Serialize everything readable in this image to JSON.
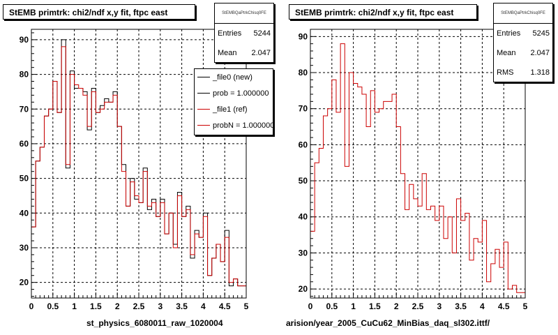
{
  "left": {
    "title": "StEMB primtrk: chi2/ndf x,y fit, ftpc east",
    "stats": {
      "name": "StEMBQaPtrkChisq0FE",
      "rows": [
        {
          "label": "Entries",
          "value": "5244"
        },
        {
          "label": "Mean",
          "value": "2.047"
        }
      ]
    },
    "legend": [
      {
        "label": "_file0 (new)",
        "color": "#000000"
      },
      {
        "label": "prob = 1.000000",
        "color": "#000000"
      },
      {
        "label": "_file1 (ref)",
        "color": "#cc0000"
      },
      {
        "label": "probN = 1.000000",
        "color": "#cc0000"
      }
    ],
    "footer": "st_physics_6080011_raw_1020004"
  },
  "right": {
    "title": "StEMB primtrk: chi2/ndf x,y fit, ftpc east",
    "stats": {
      "name": "StEMBQaPtrkChisq0FE",
      "rows": [
        {
          "label": "Entries",
          "value": "5245"
        },
        {
          "label": "Mean",
          "value": "2.047"
        },
        {
          "label": "RMS",
          "value": "1.318"
        }
      ]
    },
    "footer": "arision/year_2005_CuCu62_MinBias_daq_sl302.ittf/"
  },
  "chart_data": [
    {
      "type": "histogram",
      "title": "StEMB primtrk: chi2/ndf x,y fit, ftpc east",
      "xlim": [
        0,
        5
      ],
      "ylim": [
        15.5,
        93
      ],
      "xticks": [
        0,
        0.5,
        1,
        1.5,
        2,
        2.5,
        3,
        3.5,
        4,
        4.5,
        5
      ],
      "yticks": [
        20,
        30,
        40,
        50,
        60,
        70,
        80,
        90
      ],
      "xtick_labels": [
        "0",
        "0.5",
        "1",
        "1.5",
        "2",
        "2.5",
        "3",
        "3.5",
        "4",
        "4.5",
        "5"
      ],
      "ytick_labels": [
        "20",
        "30",
        "40",
        "50",
        "60",
        "70",
        "80",
        "90"
      ],
      "bin_width": 0.1,
      "bin_start": 0,
      "grid": true,
      "series": [
        {
          "name": "_file0 (new)",
          "color": "#000000",
          "values": [
            36,
            55,
            59,
            68,
            70,
            78,
            69,
            90,
            53,
            81,
            76,
            76,
            75,
            64,
            76,
            69,
            71,
            73,
            72,
            75,
            65,
            54,
            42,
            50,
            44,
            43,
            53,
            41,
            44,
            39,
            44,
            34,
            40,
            31,
            46,
            39,
            42,
            27,
            35,
            33,
            40,
            22,
            27,
            31,
            26,
            35,
            19,
            21,
            19,
            19
          ]
        },
        {
          "name": "_file1 (ref)",
          "color": "#cc0000",
          "values": [
            36,
            55,
            59,
            68,
            70,
            78,
            69,
            88,
            54,
            80,
            77,
            76,
            74,
            65,
            75,
            69,
            70,
            72,
            72,
            74,
            65,
            52,
            42,
            49,
            45,
            43,
            52,
            42,
            43,
            39,
            43,
            34,
            40,
            30,
            45,
            39,
            41,
            28,
            34,
            33,
            39,
            22,
            27,
            31,
            26,
            33,
            20,
            21,
            19,
            19
          ]
        }
      ]
    },
    {
      "type": "histogram",
      "title": "StEMB primtrk: chi2/ndf x,y fit, ftpc east",
      "xlim": [
        0,
        5
      ],
      "ylim": [
        17.5,
        92
      ],
      "xticks": [
        0,
        0.5,
        1,
        1.5,
        2,
        2.5,
        3,
        3.5,
        4,
        4.5,
        5
      ],
      "yticks": [
        20,
        30,
        40,
        50,
        60,
        70,
        80,
        90
      ],
      "xtick_labels": [
        "0",
        "0.5",
        "1",
        "1.5",
        "2",
        "2.5",
        "3",
        "3.5",
        "4",
        "4.5",
        "5"
      ],
      "ytick_labels": [
        "20",
        "30",
        "40",
        "50",
        "60",
        "70",
        "80",
        "90"
      ],
      "bin_width": 0.1,
      "bin_start": 0,
      "grid": true,
      "series": [
        {
          "name": "_file1 (ref)",
          "color": "#cc0000",
          "values": [
            36,
            55,
            59,
            68,
            70,
            78,
            69,
            88,
            54,
            80,
            77,
            76,
            74,
            65,
            75,
            69,
            70,
            72,
            72,
            74,
            65,
            52,
            42,
            49,
            45,
            43,
            52,
            42,
            43,
            39,
            43,
            34,
            40,
            30,
            45,
            39,
            41,
            28,
            34,
            33,
            39,
            22,
            27,
            31,
            26,
            33,
            20,
            21,
            19,
            19
          ]
        }
      ]
    }
  ]
}
